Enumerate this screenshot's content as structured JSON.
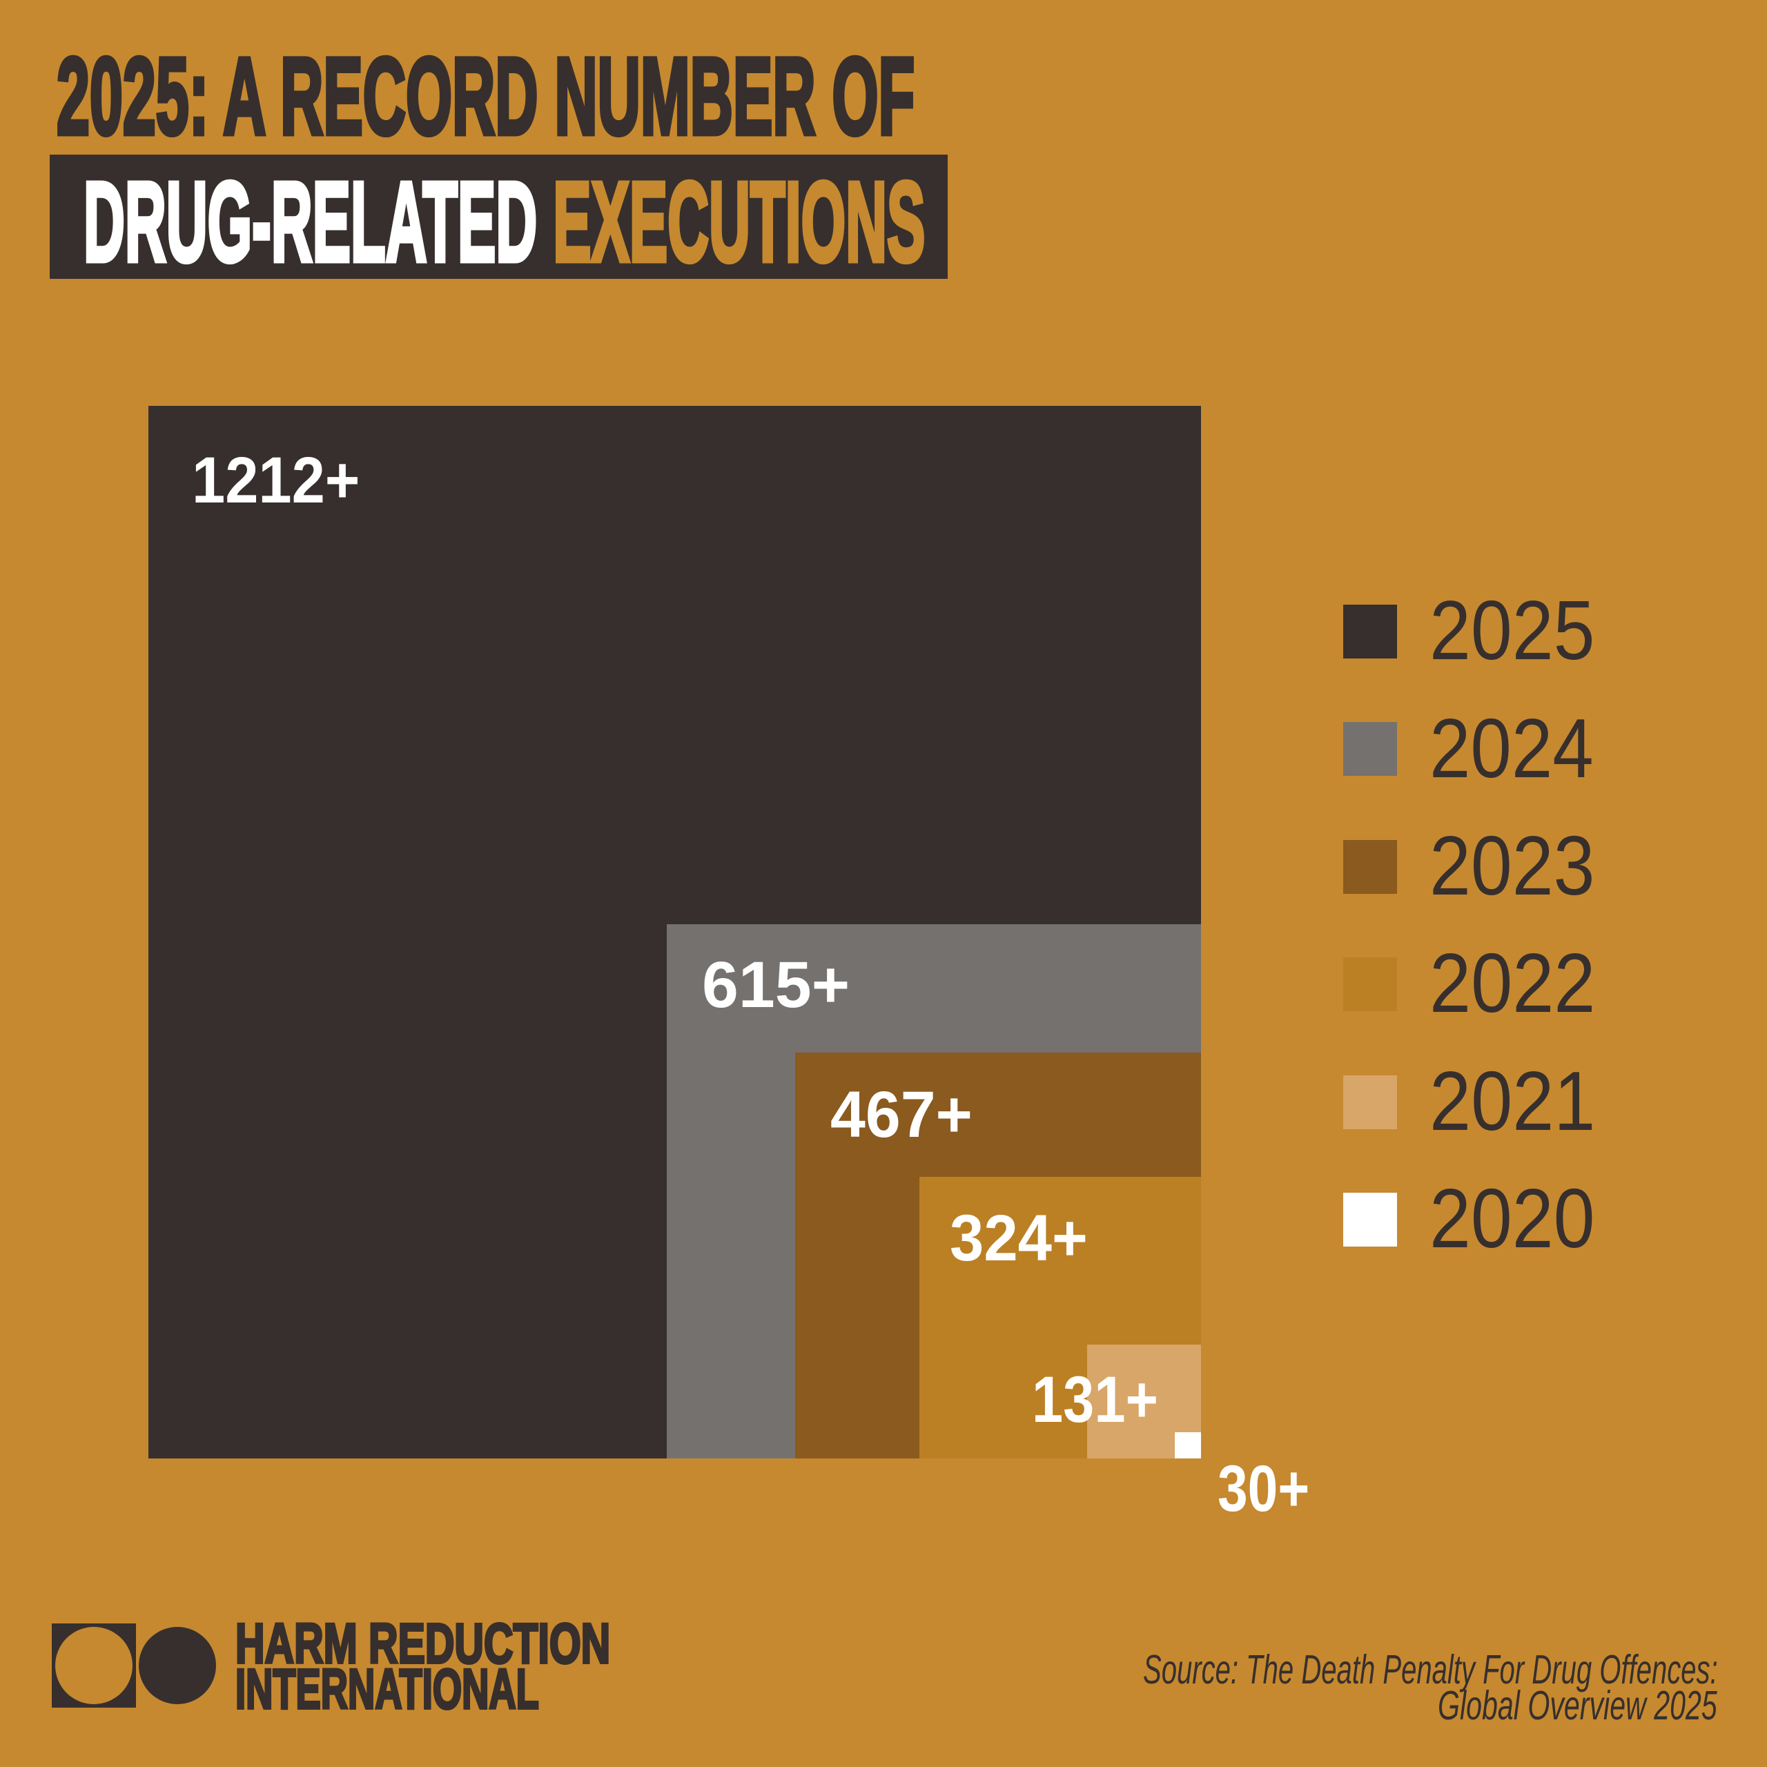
{
  "page": {
    "background": "#C6892F"
  },
  "title": {
    "line1": "2025: A RECORD NUMBER OF",
    "line2_white": "DRUG-RELATED",
    "line2_gold": "EXECUTIONS"
  },
  "chart_data": {
    "type": "area",
    "variant": "nested-proportional-squares",
    "title": "2025: A record number of drug-related executions",
    "description": "Nested squares sharing a common bottom-right corner; each square's side length is proportional to the number of drug-related executions recorded that year.",
    "categories": [
      "2025",
      "2024",
      "2023",
      "2022",
      "2021",
      "2020"
    ],
    "values": [
      1212,
      615,
      467,
      324,
      131,
      30
    ],
    "value_labels": [
      "1212+",
      "615+",
      "467+",
      "324+",
      "131+",
      "30+"
    ],
    "colors": [
      "#372F2D",
      "#75716F",
      "#8A5A1E",
      "#BB8024",
      "#D8A668",
      "#FFFFFF"
    ],
    "value_label_color": "#FFFFFF",
    "legend_position": "right",
    "grid": false
  },
  "legend": {
    "items": [
      {
        "label": "2025",
        "color": "#372F2D"
      },
      {
        "label": "2024",
        "color": "#75716F"
      },
      {
        "label": "2023",
        "color": "#8A5A1E"
      },
      {
        "label": "2022",
        "color": "#BB8024"
      },
      {
        "label": "2021",
        "color": "#D8A668"
      },
      {
        "label": "2020",
        "color": "#FFFFFF"
      }
    ],
    "text_color": "#372F2D"
  },
  "logo": {
    "organization": "Harm Reduction International",
    "line1": "HARM REDUCTION",
    "line2": "INTERNATIONAL"
  },
  "source": {
    "line1": "Source: The Death Penalty For Drug Offences:",
    "line2": "Global Overview 2025"
  },
  "colors": {
    "background": "#C6892F",
    "dark": "#372F2D",
    "gold_accent": "#C6892F",
    "white": "#FFFFFF"
  }
}
